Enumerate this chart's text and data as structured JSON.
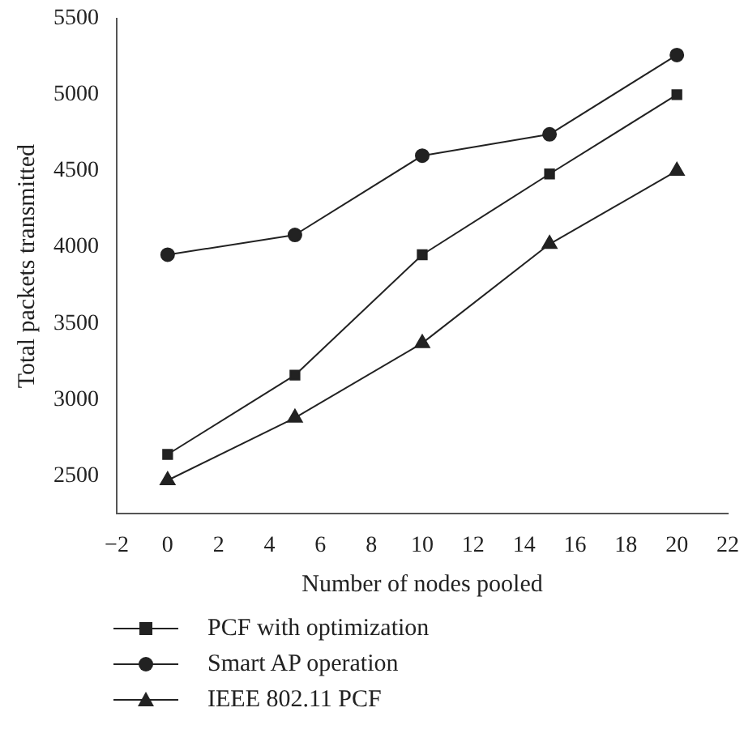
{
  "chart_data": {
    "type": "line",
    "xlabel": "Number of nodes pooled",
    "ylabel": "Total packets transmitted",
    "x": [
      0,
      5,
      10,
      15,
      20
    ],
    "series": [
      {
        "name": "PCF with optimization",
        "color": "#222222",
        "marker": "square",
        "values": [
          2640,
          3160,
          3950,
          4480,
          5000
        ]
      },
      {
        "name": "Smart AP operation",
        "color": "#222222",
        "marker": "circle",
        "values": [
          3950,
          4080,
          4600,
          4740,
          5260
        ]
      },
      {
        "name": "IEEE 802.11 PCF",
        "color": "#222222",
        "marker": "triangle",
        "values": [
          2470,
          2880,
          3370,
          4020,
          4500
        ]
      }
    ],
    "xlim": [
      -2,
      22
    ],
    "xticks": [
      -2,
      0,
      2,
      4,
      6,
      8,
      10,
      12,
      14,
      16,
      18,
      20,
      22
    ],
    "ylim": [
      2250,
      5500
    ],
    "yticks": [
      2500,
      3000,
      3500,
      4000,
      4500,
      5000,
      5500
    ],
    "grid": false,
    "legend": "bottom",
    "line_style": "solid"
  }
}
